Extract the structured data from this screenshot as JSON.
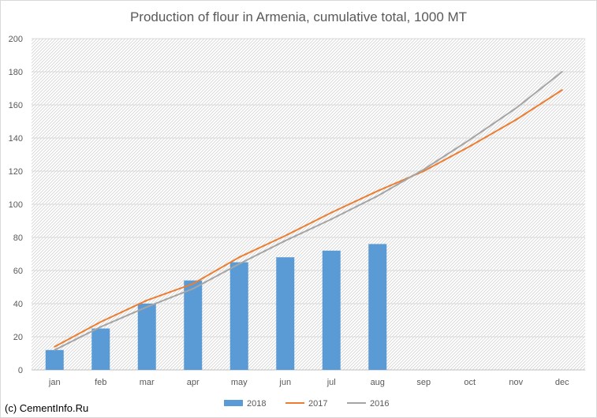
{
  "chart_data": {
    "type": "bar",
    "title": "Production of flour in Armenia, cumulative total, 1000 MT",
    "categories": [
      "jan",
      "feb",
      "mar",
      "apr",
      "may",
      "jun",
      "jul",
      "aug",
      "sep",
      "oct",
      "nov",
      "dec"
    ],
    "ylim": [
      0,
      200
    ],
    "yticks": [
      0,
      20,
      40,
      60,
      80,
      100,
      120,
      140,
      160,
      180,
      200
    ],
    "grid": true,
    "legend_position": "bottom",
    "series": [
      {
        "name": "2018",
        "type": "bar",
        "color": "#5b9bd5",
        "values": [
          12,
          25,
          40,
          54,
          65,
          68,
          72,
          76,
          null,
          null,
          null,
          null
        ]
      },
      {
        "name": "2017",
        "type": "line",
        "color": "#ed7d31",
        "values": [
          14,
          29,
          42,
          52,
          68,
          81,
          95,
          108,
          120,
          135,
          151,
          169
        ]
      },
      {
        "name": "2016",
        "type": "line",
        "color": "#a5a5a5",
        "values": [
          12,
          26,
          38,
          49,
          64,
          78,
          91,
          105,
          121,
          139,
          158,
          180
        ]
      }
    ]
  },
  "footer": {
    "credit": "(c) CementInfo.Ru"
  }
}
